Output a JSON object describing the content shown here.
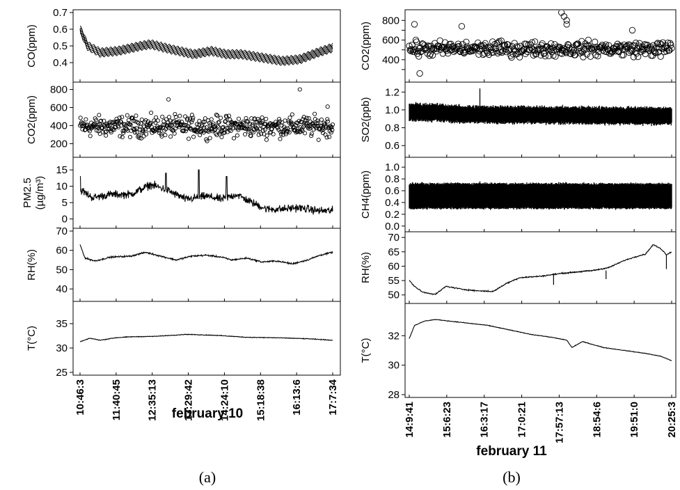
{
  "chart_data": [
    {
      "id": "a",
      "caption": "(a)",
      "xtitle": "february 10",
      "xticks": [
        "10:46:3",
        "11:40:45",
        "12:35:13",
        "13:29:42",
        "14:24:10",
        "15:18:38",
        "16:13:6",
        "17:7:34"
      ],
      "panels": [
        {
          "ylabel": "CO(ppm)",
          "type": "line",
          "ylim": [
            0.3,
            0.7
          ],
          "yticks": [
            0.4,
            0.5,
            0.6,
            0.7
          ],
          "yticklabels": [
            "0.4",
            "0.5",
            "0.6",
            "0.7"
          ],
          "series": [
            {
              "x": [
                0,
                0.03,
                0.08,
                0.15,
                0.24,
                0.28,
                0.36,
                0.45,
                0.52,
                0.58,
                0.64,
                0.72,
                0.8,
                0.87,
                0.94,
                1
              ],
              "y": [
                0.6,
                0.5,
                0.46,
                0.47,
                0.5,
                0.51,
                0.48,
                0.45,
                0.47,
                0.45,
                0.45,
                0.43,
                0.41,
                0.42,
                0.46,
                0.49
              ],
              "band": 0.045
            }
          ]
        },
        {
          "ylabel": "CO2(ppm)",
          "type": "scatter",
          "ylim": [
            80,
            850
          ],
          "yticks": [
            200,
            400,
            600,
            800
          ],
          "yticklabels": [
            "200",
            "400",
            "600",
            "800"
          ],
          "series": [
            {
              "mean": 390,
              "spread": 170,
              "n": 520,
              "outliers": [
                [
                  0.35,
                  690
                ],
                [
                  0.87,
                  800
                ],
                [
                  0.98,
                  610
                ]
              ]
            }
          ]
        },
        {
          "ylabel": "PM2.5",
          "ylabel2": "(µg/m³)",
          "type": "line",
          "ylim": [
            -2,
            18
          ],
          "yticks": [
            0,
            5,
            10,
            15
          ],
          "yticklabels": [
            "0",
            "5",
            "10",
            "15"
          ],
          "series": [
            {
              "x": [
                0,
                0.05,
                0.12,
                0.2,
                0.28,
                0.34,
                0.42,
                0.5,
                0.56,
                0.62,
                0.68,
                0.74,
                0.8,
                0.86,
                0.9,
                0.95,
                1
              ],
              "y": [
                9,
                6.5,
                7.5,
                7.5,
                10.5,
                9,
                6,
                7,
                6,
                7.5,
                5,
                3,
                3,
                3.5,
                3,
                2.5,
                2.5
              ],
              "noise": 1.8,
              "spikes": [
                [
                  0.0,
                  13
                ],
                [
                  0.34,
                  14
                ],
                [
                  0.47,
                  15
                ],
                [
                  0.58,
                  13
                ]
              ]
            }
          ]
        },
        {
          "ylabel": "RH(%)",
          "type": "line",
          "ylim": [
            35,
            70
          ],
          "yticks": [
            40,
            50,
            60,
            70
          ],
          "yticklabels": [
            "40",
            "50",
            "60",
            "70"
          ],
          "series": [
            {
              "x": [
                0,
                0.02,
                0.06,
                0.12,
                0.2,
                0.26,
                0.32,
                0.38,
                0.44,
                0.5,
                0.56,
                0.6,
                0.66,
                0.72,
                0.78,
                0.84,
                0.9,
                0.95,
                1
              ],
              "y": [
                63,
                56,
                54.5,
                56.5,
                57,
                59,
                57,
                55,
                57,
                57.5,
                56.5,
                55,
                56,
                54,
                54.5,
                53,
                55,
                57.5,
                59
              ],
              "noise": 0.6
            }
          ]
        },
        {
          "ylabel": "T(°C)",
          "type": "line",
          "ylim": [
            25,
            39
          ],
          "yticks": [
            25,
            30,
            35
          ],
          "yticklabels": [
            "25",
            "30",
            "35"
          ],
          "series": [
            {
              "x": [
                0,
                0.04,
                0.08,
                0.14,
                0.2,
                0.3,
                0.42,
                0.54,
                0.66,
                0.78,
                0.9,
                1
              ],
              "y": [
                31.3,
                32.0,
                31.6,
                32.1,
                32.3,
                32.4,
                32.8,
                32.6,
                32.2,
                32.1,
                31.9,
                31.6
              ],
              "noise": 0.1
            }
          ]
        }
      ]
    },
    {
      "id": "b",
      "caption": "(b)",
      "xtitle": "february 11",
      "xticks": [
        "14:9:41",
        "15:6:23",
        "16:3:17",
        "17:0:21",
        "17:57:13",
        "18:54:6",
        "19:51:0",
        "20:25:3"
      ],
      "panels": [
        {
          "ylabel": "CO2(ppm)",
          "type": "scatter",
          "ylim": [
            200,
            880
          ],
          "yticks": [
            300,
            400,
            500,
            600,
            700,
            800
          ],
          "yticklabels": [
            "",
            "400",
            "",
            "600",
            "",
            "800"
          ],
          "series": [
            {
              "mean": 510,
              "spread": 110,
              "n": 360,
              "outliers": [
                [
                  0.02,
                  760
                ],
                [
                  0.04,
                  260
                ],
                [
                  0.58,
                  880
                ],
                [
                  0.59,
                  840
                ],
                [
                  0.6,
                  800
                ],
                [
                  0.6,
                  760
                ],
                [
                  0.2,
                  740
                ],
                [
                  0.85,
                  700
                ]
              ]
            }
          ]
        },
        {
          "ylabel": "SO2(ppb)",
          "type": "bars",
          "ylim": [
            0.5,
            1.28
          ],
          "yticks": [
            0.6,
            0.8,
            1.0,
            1.2
          ],
          "yticklabels": [
            "0.6",
            "0.8",
            "1.0",
            "1.2"
          ],
          "series": [
            {
              "x": [
                0,
                0.1,
                0.2,
                1
              ],
              "low": [
                0.88,
                0.88,
                0.86,
                0.84
              ],
              "high": [
                1.07,
                1.06,
                1.04,
                1.02
              ],
              "max": 1.24
            }
          ]
        },
        {
          "ylabel": "CH4(ppm)",
          "type": "bars",
          "ylim": [
            -0.05,
            1.12
          ],
          "yticks": [
            0.0,
            0.2,
            0.4,
            0.6,
            0.8,
            1.0
          ],
          "yticklabels": [
            "0.0",
            "0.2",
            "0.4",
            "0.6",
            "0.8",
            "1.0"
          ],
          "series": [
            {
              "x": [
                0,
                1
              ],
              "low": [
                0.3,
                0.3
              ],
              "high": [
                0.72,
                0.72
              ],
              "max": 0.76
            }
          ]
        },
        {
          "ylabel": "RH(%)",
          "type": "line",
          "ylim": [
            48,
            71
          ],
          "yticks": [
            50,
            55,
            60,
            65,
            70
          ],
          "yticklabels": [
            "50",
            "55",
            "60",
            "65",
            "70"
          ],
          "series": [
            {
              "x": [
                0,
                0.02,
                0.05,
                0.08,
                0.1,
                0.14,
                0.2,
                0.25,
                0.32,
                0.37,
                0.42,
                0.5,
                0.58,
                0.64,
                0.7,
                0.76,
                0.82,
                0.87,
                0.9,
                0.93,
                0.96,
                0.98,
                1
              ],
              "y": [
                55,
                53,
                51,
                50.5,
                50.2,
                53,
                52,
                51.5,
                51.2,
                54,
                56,
                56.5,
                57.5,
                58,
                58.5,
                59.5,
                62,
                63.5,
                64.2,
                67.5,
                66,
                64,
                65
              ],
              "noise": 0.3,
              "drops": [
                [
                  0.55,
                  57.5,
                  53.5
                ],
                [
                  0.75,
                  58.5,
                  55.5
                ],
                [
                  0.98,
                  64,
                  59
                ]
              ]
            }
          ]
        },
        {
          "ylabel": "T(°C)",
          "type": "line",
          "ylim": [
            28,
            34
          ],
          "yticks": [
            28,
            30,
            32
          ],
          "yticklabels": [
            "28",
            "30",
            "32"
          ],
          "series": [
            {
              "x": [
                0,
                0.02,
                0.06,
                0.1,
                0.2,
                0.3,
                0.38,
                0.46,
                0.54,
                0.6,
                0.62,
                0.66,
                0.74,
                0.82,
                0.9,
                0.96,
                1
              ],
              "y": [
                31.8,
                32.7,
                33.0,
                33.1,
                32.9,
                32.7,
                32.4,
                32.1,
                31.9,
                31.7,
                31.2,
                31.6,
                31.2,
                31.0,
                30.8,
                30.6,
                30.3
              ],
              "noise": 0.03
            }
          ]
        }
      ]
    }
  ]
}
